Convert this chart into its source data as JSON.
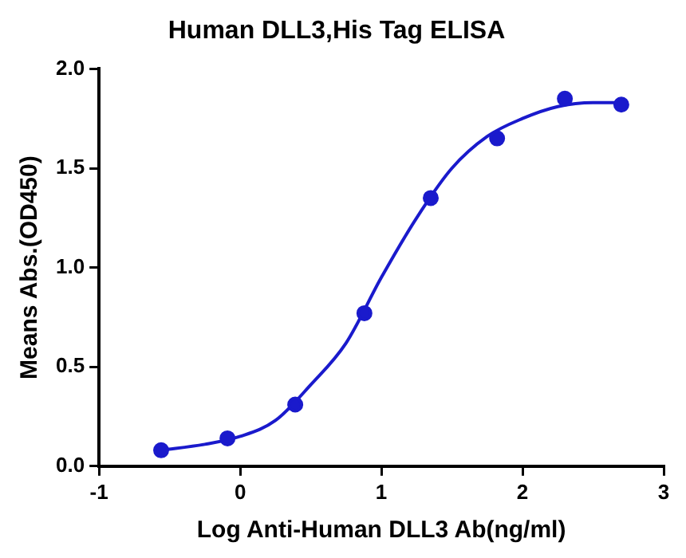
{
  "chart_data": {
    "type": "scatter",
    "title": "Human DLL3,His Tag ELISA",
    "xlabel": "Log Anti-Human DLL3 Ab(ng/ml)",
    "ylabel": "Means Abs.(OD450)",
    "xlim": [
      -1,
      3
    ],
    "xticks": [
      -1,
      0,
      1,
      2,
      3
    ],
    "ylim": [
      0,
      2
    ],
    "yticks": [
      {
        "value": 0,
        "label": "0.0"
      },
      {
        "value": 0.5,
        "label": "0.5"
      },
      {
        "value": 1,
        "label": "1.0"
      },
      {
        "value": 1.5,
        "label": "1.5"
      },
      {
        "value": 2,
        "label": "2.0"
      }
    ],
    "grid": false,
    "legend": false,
    "marker": "circle",
    "series": [
      {
        "type": "scatter",
        "color": "#1a1acc",
        "x": [
          -0.56,
          -0.09,
          0.39,
          0.88,
          1.35,
          1.82,
          2.3,
          2.7
        ],
        "values": [
          0.08,
          0.14,
          0.31,
          0.77,
          1.35,
          1.65,
          1.85,
          1.82
        ]
      },
      {
        "type": "line",
        "color": "#1a1acc",
        "marker": "none",
        "line_style": "solid",
        "x": [
          -0.56,
          -0.25,
          0,
          0.25,
          0.5,
          0.75,
          1,
          1.25,
          1.5,
          1.75,
          2,
          2.25,
          2.5,
          2.7
        ],
        "values": [
          0.08,
          0.11,
          0.15,
          0.23,
          0.41,
          0.62,
          0.95,
          1.25,
          1.5,
          1.66,
          1.75,
          1.81,
          1.83,
          1.83
        ]
      }
    ]
  }
}
